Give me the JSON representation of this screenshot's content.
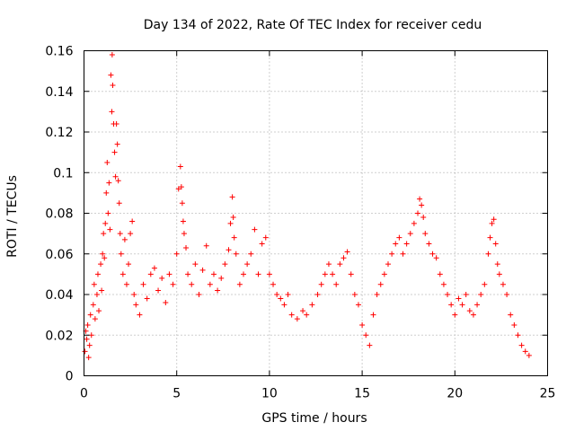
{
  "chart_data": {
    "type": "scatter",
    "title": "Day 134 of 2022, Rate Of TEC Index for receiver cedu",
    "xlabel": "GPS time / hours",
    "ylabel": "ROTI / TECUs",
    "xlim": [
      0,
      25
    ],
    "ylim": [
      0,
      0.16
    ],
    "xticks": [
      0,
      5,
      10,
      15,
      20,
      25
    ],
    "xtick_labels": [
      "0",
      "5",
      "10",
      "15",
      "20",
      "25"
    ],
    "yticks": [
      0,
      0.02,
      0.04,
      0.06,
      0.08,
      0.1,
      0.12,
      0.14,
      0.16
    ],
    "ytick_labels": [
      "0",
      "0.02",
      "0.04",
      "0.06",
      "0.08",
      "0.1",
      "0.12",
      "0.14",
      "0.16"
    ],
    "grid": true,
    "marker": "plus",
    "color": "#ff0000",
    "series": [
      {
        "points": [
          [
            0.05,
            0.012
          ],
          [
            0.1,
            0.022
          ],
          [
            0.15,
            0.018
          ],
          [
            0.2,
            0.025
          ],
          [
            0.25,
            0.009
          ],
          [
            0.3,
            0.015
          ],
          [
            0.35,
            0.03
          ],
          [
            0.4,
            0.02
          ],
          [
            0.5,
            0.035
          ],
          [
            0.55,
            0.045
          ],
          [
            0.6,
            0.028
          ],
          [
            0.7,
            0.04
          ],
          [
            0.75,
            0.05
          ],
          [
            0.8,
            0.032
          ],
          [
            0.9,
            0.055
          ],
          [
            0.95,
            0.042
          ],
          [
            1.0,
            0.06
          ],
          [
            1.05,
            0.07
          ],
          [
            1.1,
            0.058
          ],
          [
            1.15,
            0.075
          ],
          [
            1.2,
            0.09
          ],
          [
            1.25,
            0.105
          ],
          [
            1.3,
            0.08
          ],
          [
            1.35,
            0.095
          ],
          [
            1.4,
            0.072
          ],
          [
            1.45,
            0.148
          ],
          [
            1.5,
            0.13
          ],
          [
            1.52,
            0.158
          ],
          [
            1.55,
            0.143
          ],
          [
            1.6,
            0.124
          ],
          [
            1.65,
            0.11
          ],
          [
            1.7,
            0.098
          ],
          [
            1.75,
            0.124
          ],
          [
            1.8,
            0.114
          ],
          [
            1.85,
            0.096
          ],
          [
            1.9,
            0.085
          ],
          [
            1.95,
            0.07
          ],
          [
            2.0,
            0.06
          ],
          [
            2.1,
            0.05
          ],
          [
            2.2,
            0.067
          ],
          [
            2.3,
            0.045
          ],
          [
            2.4,
            0.055
          ],
          [
            2.5,
            0.07
          ],
          [
            2.6,
            0.076
          ],
          [
            2.7,
            0.04
          ],
          [
            2.8,
            0.035
          ],
          [
            3.0,
            0.03
          ],
          [
            3.2,
            0.045
          ],
          [
            3.4,
            0.038
          ],
          [
            3.6,
            0.05
          ],
          [
            3.8,
            0.053
          ],
          [
            4.0,
            0.042
          ],
          [
            4.2,
            0.048
          ],
          [
            4.4,
            0.036
          ],
          [
            4.6,
            0.05
          ],
          [
            4.8,
            0.045
          ],
          [
            5.0,
            0.06
          ],
          [
            5.1,
            0.092
          ],
          [
            5.2,
            0.103
          ],
          [
            5.25,
            0.093
          ],
          [
            5.3,
            0.085
          ],
          [
            5.35,
            0.076
          ],
          [
            5.4,
            0.07
          ],
          [
            5.5,
            0.063
          ],
          [
            5.6,
            0.05
          ],
          [
            5.8,
            0.045
          ],
          [
            6.0,
            0.055
          ],
          [
            6.2,
            0.04
          ],
          [
            6.4,
            0.052
          ],
          [
            6.6,
            0.064
          ],
          [
            6.8,
            0.045
          ],
          [
            7.0,
            0.05
          ],
          [
            7.2,
            0.042
          ],
          [
            7.4,
            0.048
          ],
          [
            7.6,
            0.055
          ],
          [
            7.8,
            0.062
          ],
          [
            7.9,
            0.075
          ],
          [
            8.0,
            0.088
          ],
          [
            8.05,
            0.078
          ],
          [
            8.1,
            0.068
          ],
          [
            8.2,
            0.06
          ],
          [
            8.4,
            0.045
          ],
          [
            8.6,
            0.05
          ],
          [
            8.8,
            0.055
          ],
          [
            9.0,
            0.06
          ],
          [
            9.2,
            0.072
          ],
          [
            9.4,
            0.05
          ],
          [
            9.6,
            0.065
          ],
          [
            9.8,
            0.068
          ],
          [
            10.0,
            0.05
          ],
          [
            10.2,
            0.045
          ],
          [
            10.4,
            0.04
          ],
          [
            10.6,
            0.038
          ],
          [
            10.8,
            0.035
          ],
          [
            11.0,
            0.04
          ],
          [
            11.2,
            0.03
          ],
          [
            11.5,
            0.028
          ],
          [
            11.8,
            0.032
          ],
          [
            12.0,
            0.03
          ],
          [
            12.3,
            0.035
          ],
          [
            12.6,
            0.04
          ],
          [
            12.8,
            0.045
          ],
          [
            13.0,
            0.05
          ],
          [
            13.2,
            0.055
          ],
          [
            13.4,
            0.05
          ],
          [
            13.6,
            0.045
          ],
          [
            13.8,
            0.055
          ],
          [
            14.0,
            0.058
          ],
          [
            14.2,
            0.061
          ],
          [
            14.4,
            0.05
          ],
          [
            14.6,
            0.04
          ],
          [
            14.8,
            0.035
          ],
          [
            15.0,
            0.025
          ],
          [
            15.2,
            0.02
          ],
          [
            15.4,
            0.015
          ],
          [
            15.6,
            0.03
          ],
          [
            15.8,
            0.04
          ],
          [
            16.0,
            0.045
          ],
          [
            16.2,
            0.05
          ],
          [
            16.4,
            0.055
          ],
          [
            16.6,
            0.06
          ],
          [
            16.8,
            0.065
          ],
          [
            17.0,
            0.068
          ],
          [
            17.2,
            0.06
          ],
          [
            17.4,
            0.065
          ],
          [
            17.6,
            0.07
          ],
          [
            17.8,
            0.075
          ],
          [
            18.0,
            0.08
          ],
          [
            18.1,
            0.087
          ],
          [
            18.2,
            0.084
          ],
          [
            18.3,
            0.078
          ],
          [
            18.4,
            0.07
          ],
          [
            18.6,
            0.065
          ],
          [
            18.8,
            0.06
          ],
          [
            19.0,
            0.058
          ],
          [
            19.2,
            0.05
          ],
          [
            19.4,
            0.045
          ],
          [
            19.6,
            0.04
          ],
          [
            19.8,
            0.035
          ],
          [
            20.0,
            0.03
          ],
          [
            20.2,
            0.038
          ],
          [
            20.4,
            0.035
          ],
          [
            20.6,
            0.04
          ],
          [
            20.8,
            0.032
          ],
          [
            21.0,
            0.03
          ],
          [
            21.2,
            0.035
          ],
          [
            21.4,
            0.04
          ],
          [
            21.6,
            0.045
          ],
          [
            21.8,
            0.06
          ],
          [
            21.9,
            0.068
          ],
          [
            22.0,
            0.075
          ],
          [
            22.1,
            0.077
          ],
          [
            22.2,
            0.065
          ],
          [
            22.3,
            0.055
          ],
          [
            22.4,
            0.05
          ],
          [
            22.6,
            0.045
          ],
          [
            22.8,
            0.04
          ],
          [
            23.0,
            0.03
          ],
          [
            23.2,
            0.025
          ],
          [
            23.4,
            0.02
          ],
          [
            23.6,
            0.015
          ],
          [
            23.8,
            0.012
          ],
          [
            24.0,
            0.01
          ]
        ]
      }
    ]
  }
}
